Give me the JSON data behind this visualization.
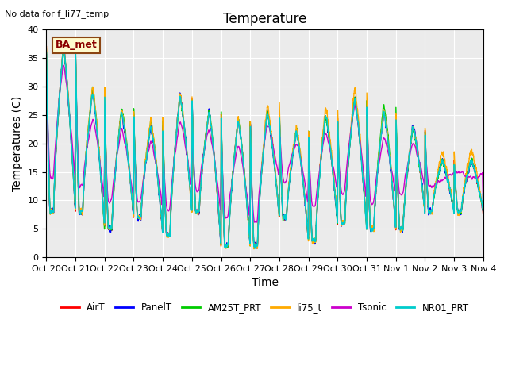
{
  "title": "Temperature",
  "ylabel": "Temperatures (C)",
  "xlabel": "Time",
  "no_data_text": "No data for f_li77_temp",
  "annotation_text": "BA_met",
  "ylim": [
    0,
    40
  ],
  "yticks": [
    0,
    5,
    10,
    15,
    20,
    25,
    30,
    35,
    40
  ],
  "xtick_labels": [
    "Oct 20",
    "Oct 21",
    "Oct 22",
    "Oct 23",
    "Oct 24",
    "Oct 25",
    "Oct 26",
    "Oct 27",
    "Oct 28",
    "Oct 29",
    "Oct 30",
    "Oct 31",
    "Nov 1",
    "Nov 2",
    "Nov 3",
    "Nov 4"
  ],
  "series": [
    {
      "name": "AirT",
      "color": "#ff0000",
      "lw": 1.0
    },
    {
      "name": "PanelT",
      "color": "#0000ff",
      "lw": 1.0
    },
    {
      "name": "AM25T_PRT",
      "color": "#00cc00",
      "lw": 1.0
    },
    {
      "name": "li75_t",
      "color": "#ffaa00",
      "lw": 1.0
    },
    {
      "name": "Tsonic",
      "color": "#cc00cc",
      "lw": 1.0
    },
    {
      "name": "NR01_PRT",
      "color": "#00cccc",
      "lw": 1.2
    }
  ],
  "bg_color": "#ebebeb",
  "fig_bg": "#ffffff",
  "title_fontsize": 12,
  "label_fontsize": 10,
  "tick_fontsize": 8,
  "day_peaks": [
    37,
    29,
    25.5,
    23,
    28.5,
    25.5,
    24,
    25.5,
    22,
    25,
    28,
    25.5,
    23,
    17,
    17
  ],
  "day_troughs": [
    8,
    8,
    5,
    7,
    4,
    8,
    2,
    2,
    7,
    3,
    6,
    5,
    5,
    8,
    8
  ]
}
